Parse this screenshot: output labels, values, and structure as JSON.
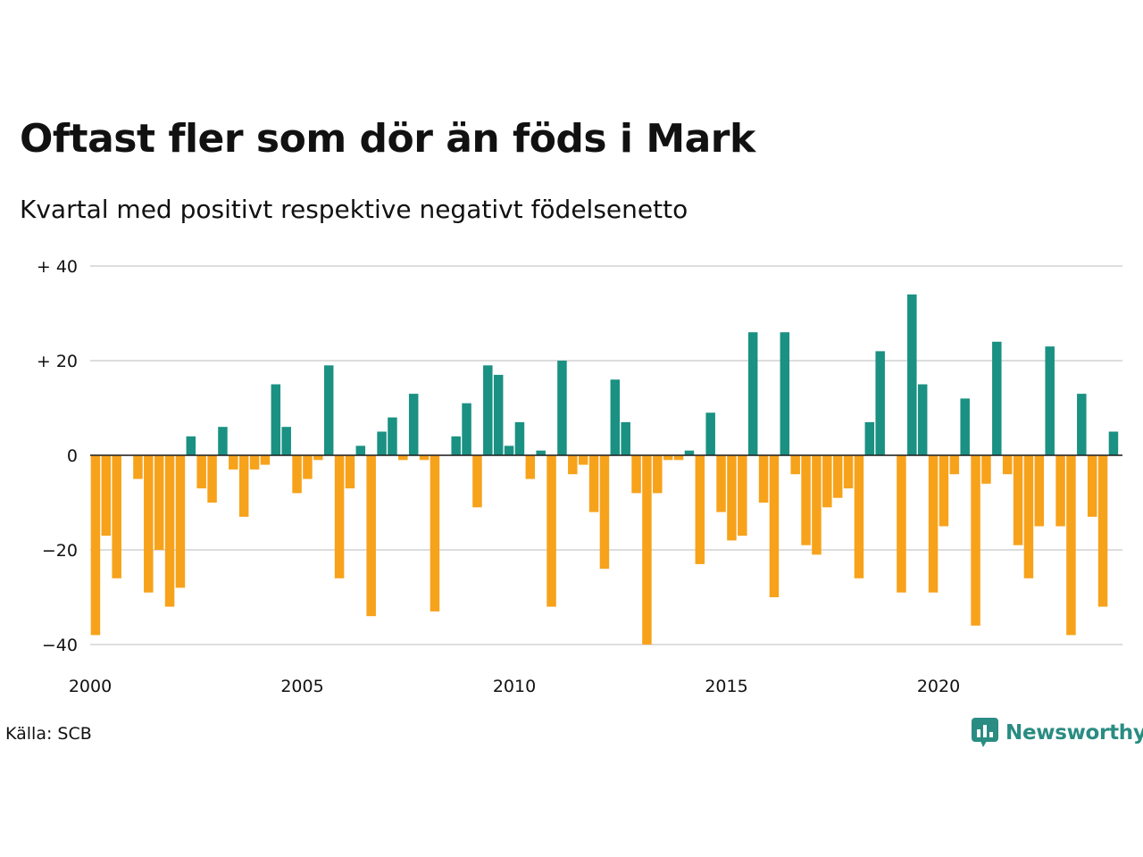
{
  "title": "Oftast fler som dör än föds i Mark",
  "subtitle": "Kvartal med positivt respektive negativt födelsenetto",
  "source": "Källa: SCB",
  "brand": {
    "name": "Newsworthy",
    "icon": "newsworthy-logo-icon",
    "color": "#2a8c82"
  },
  "chart_data": {
    "type": "bar",
    "colors": {
      "positive": "#1a9182",
      "negative": "#f7a21b"
    },
    "ylim": [
      -40,
      40
    ],
    "y_ticks": [
      {
        "value": 40,
        "label": "+ 40"
      },
      {
        "value": 20,
        "label": "+ 20"
      },
      {
        "value": 0,
        "label": "0"
      },
      {
        "value": -20,
        "label": "−20"
      },
      {
        "value": -40,
        "label": "−40"
      }
    ],
    "x_ticks": [
      "2000",
      "2005",
      "2010",
      "2015",
      "2020"
    ],
    "grid": true,
    "start": "2000 Q1",
    "values": [
      -38,
      -17,
      -26,
      0,
      -5,
      -29,
      -20,
      -32,
      -28,
      4,
      -7,
      -10,
      6,
      -3,
      -13,
      -3,
      -2,
      15,
      6,
      -8,
      -5,
      -1,
      19,
      -26,
      -7,
      2,
      -34,
      5,
      8,
      -1,
      13,
      -1,
      -33,
      0,
      4,
      11,
      -11,
      19,
      17,
      2,
      7,
      -5,
      1,
      -32,
      20,
      -4,
      -2,
      -12,
      -24,
      16,
      7,
      -8,
      -40,
      -8,
      -1,
      -1,
      1,
      -23,
      9,
      -12,
      -18,
      -17,
      26,
      -10,
      -30,
      26,
      -4,
      -19,
      -21,
      -11,
      -9,
      -7,
      -26,
      7,
      22,
      0,
      -29,
      34,
      15,
      -29,
      -15,
      -4,
      12,
      -36,
      -6,
      24,
      -4,
      -19,
      -26,
      -15,
      23,
      -15,
      -38,
      13,
      -13,
      -32,
      5
    ]
  }
}
